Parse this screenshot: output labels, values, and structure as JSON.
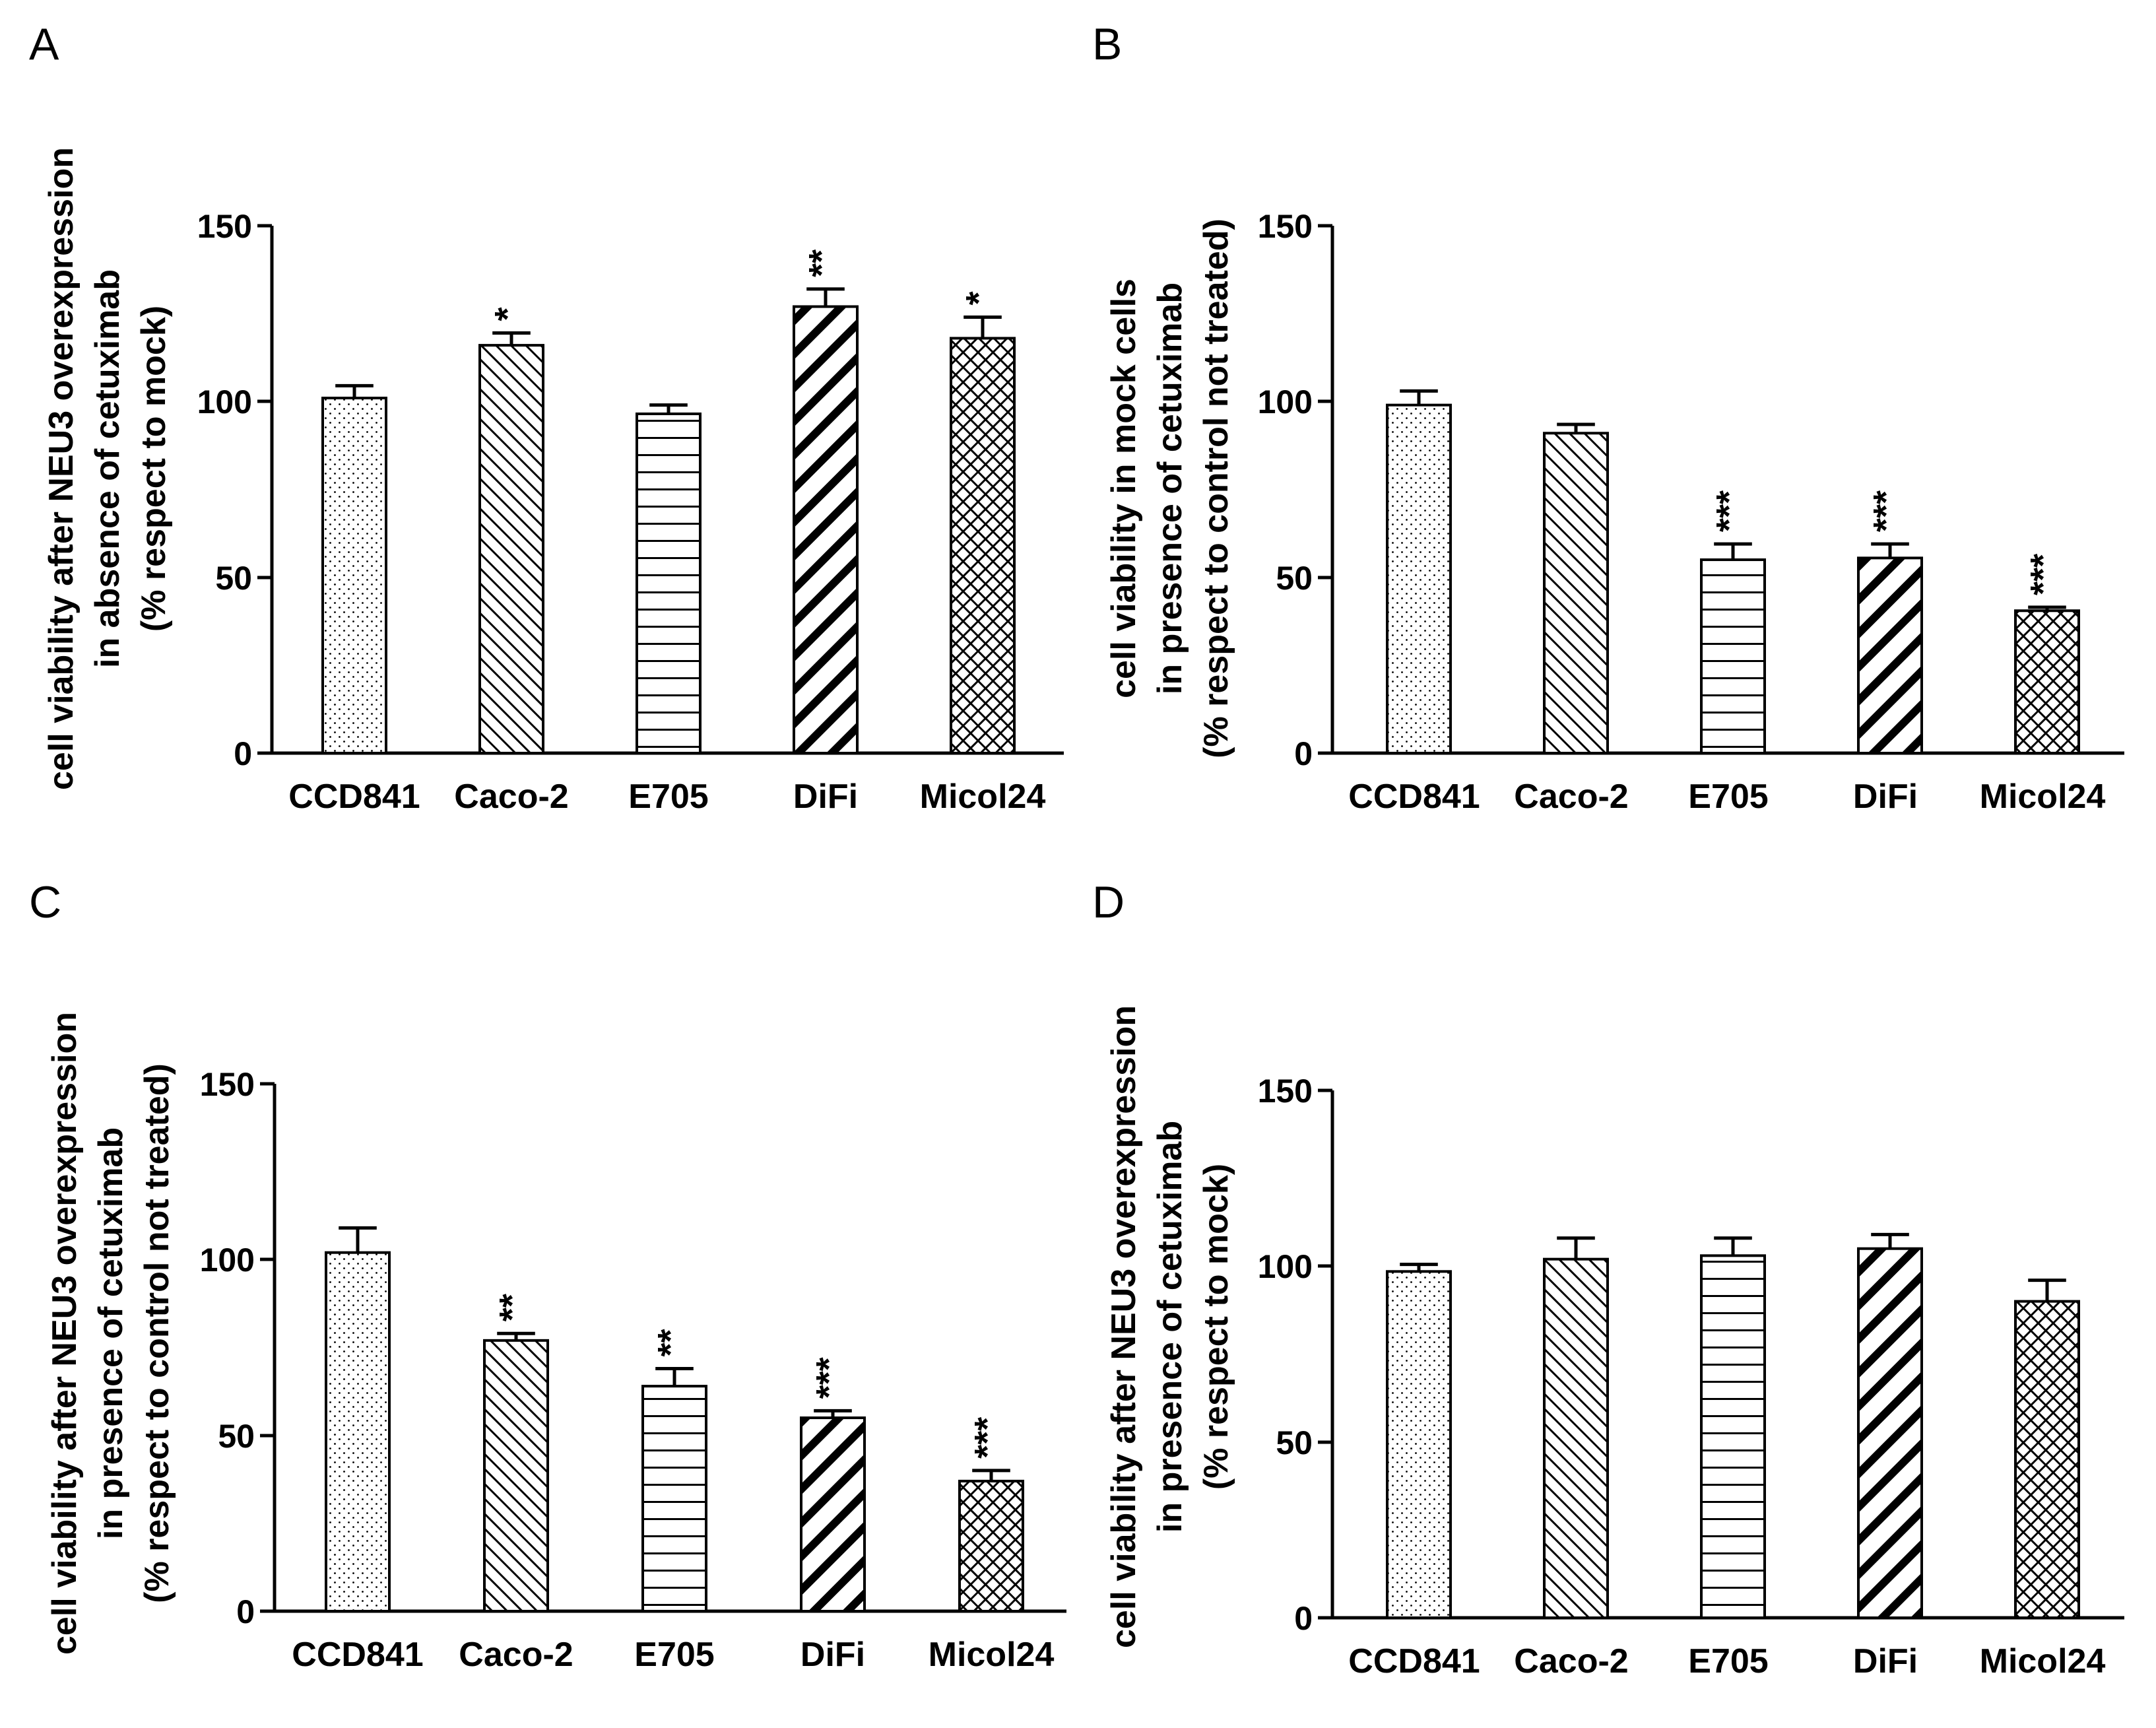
{
  "figure": {
    "categories": [
      "CCD841",
      "Caco-2",
      "E705",
      "DiFi",
      "Micol24"
    ],
    "yticks": [
      "0",
      "50",
      "100",
      "150"
    ]
  },
  "chart_data": [
    {
      "panel": "A",
      "type": "bar",
      "ylabel_lines": [
        "cell viability after NEU3 overexpression",
        "in absence of cetuximab",
        "(% respect to mock)"
      ],
      "ylim": [
        0,
        150
      ],
      "yticks": [
        0,
        50,
        100,
        150
      ],
      "categories": [
        "CCD841",
        "Caco-2",
        "E705",
        "DiFi",
        "Micol24"
      ],
      "values": [
        101,
        116,
        96.5,
        127,
        118
      ],
      "errors": [
        3.5,
        3.5,
        2.5,
        5,
        6
      ],
      "significance": [
        "",
        "*",
        "",
        "**",
        "*"
      ],
      "patterns": [
        "dots",
        "diag-fine",
        "hlines",
        "diag-bold",
        "crosshatch"
      ]
    },
    {
      "panel": "B",
      "type": "bar",
      "ylabel_lines": [
        "cell viability in mock cells",
        "in presence of cetuximab",
        "(% respect to control not treated)"
      ],
      "ylim": [
        0,
        150
      ],
      "yticks": [
        0,
        50,
        100,
        150
      ],
      "categories": [
        "CCD841",
        "Caco-2",
        "E705",
        "DiFi",
        "Micol24"
      ],
      "values": [
        99,
        91,
        55,
        55.5,
        40.5
      ],
      "errors": [
        4,
        2.5,
        4.5,
        4,
        1
      ],
      "significance": [
        "",
        "",
        "***",
        "***",
        "***"
      ],
      "patterns": [
        "dots",
        "diag-fine",
        "hlines",
        "diag-bold",
        "crosshatch"
      ]
    },
    {
      "panel": "C",
      "type": "bar",
      "ylabel_lines": [
        "cell viability after NEU3 overexpression",
        "in presence of cetuximab",
        "(% respect to control not treated)"
      ],
      "ylim": [
        0,
        150
      ],
      "yticks": [
        0,
        50,
        100,
        150
      ],
      "categories": [
        "CCD841",
        "Caco-2",
        "E705",
        "DiFi",
        "Micol24"
      ],
      "values": [
        102,
        77,
        64,
        55,
        37
      ],
      "errors": [
        7,
        2,
        5,
        2,
        3
      ],
      "significance": [
        "",
        "**",
        "**",
        "***",
        "***"
      ],
      "patterns": [
        "dots",
        "diag-fine",
        "hlines",
        "diag-bold",
        "crosshatch"
      ]
    },
    {
      "panel": "D",
      "type": "bar",
      "ylabel_lines": [
        "cell viability after NEU3 overexpression",
        "in presence of cetuximab",
        "(% respect to mock)"
      ],
      "ylim": [
        0,
        150
      ],
      "yticks": [
        0,
        50,
        100,
        150
      ],
      "categories": [
        "CCD841",
        "Caco-2",
        "E705",
        "DiFi",
        "Micol24"
      ],
      "values": [
        98.5,
        102,
        103,
        105,
        90
      ],
      "errors": [
        2,
        6,
        5,
        4,
        6
      ],
      "significance": [
        "",
        "",
        "",
        "",
        ""
      ],
      "patterns": [
        "dots",
        "diag-fine",
        "hlines",
        "diag-bold",
        "crosshatch"
      ]
    }
  ]
}
